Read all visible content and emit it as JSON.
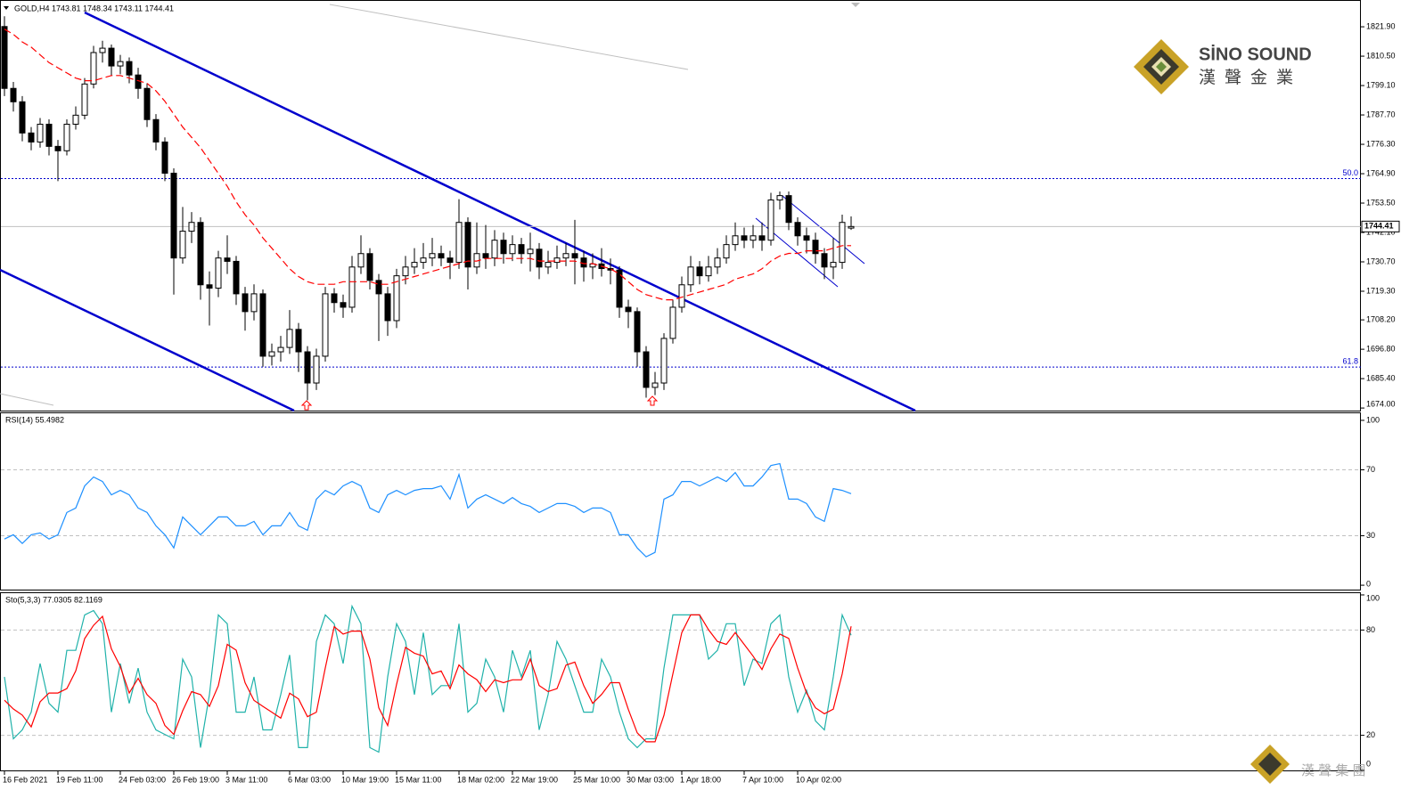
{
  "chart_data": [
    {
      "type": "candlestick",
      "title": "GOLD,H4  1743.81 1748.34 1743.11 1744.41",
      "categories": [
        "16 Feb 2021",
        null,
        null,
        null,
        null,
        null,
        "19 Feb 11:00",
        null,
        null,
        null,
        null,
        null,
        null,
        "24 Feb 03:00",
        null,
        null,
        null,
        null,
        null,
        "26 Feb 19:00",
        null,
        null,
        null,
        null,
        null,
        "3 Mar 11:00",
        null,
        null,
        null,
        null,
        null,
        null,
        "6 Mar 03:00",
        null,
        null,
        null,
        null,
        null,
        "10 Mar 19:00",
        null,
        null,
        null,
        null,
        null,
        "15 Mar 11:00",
        null,
        null,
        null,
        null,
        null,
        null,
        "18 Mar 02:00",
        null,
        null,
        null,
        null,
        null,
        "22 Mar 19:00",
        null,
        null,
        null,
        null,
        null,
        null,
        "25 Mar 10:00",
        null,
        null,
        null,
        null,
        null,
        "30 Mar 03:00",
        null,
        null,
        null,
        null,
        null,
        "1 Apr 18:00",
        null,
        null,
        null,
        null,
        null,
        null,
        "7 Apr 10:00",
        null,
        null,
        null,
        null,
        null,
        "10 Apr 02:00",
        null,
        null,
        null,
        null,
        null,
        null
      ],
      "open": [
        1822.0,
        1798.0,
        1792.8,
        1780.7,
        1777.2,
        1784.1,
        1775.5,
        1773.8,
        1784.1,
        1787.6,
        1799.7,
        1811.9,
        1813.6,
        1806.7,
        1808.4,
        1803.2,
        1798.0,
        1785.9,
        1777.2,
        1765.1,
        1732.2,
        1742.6,
        1746.0,
        1721.8,
        1720.5,
        1732.2,
        1730.9,
        1718.3,
        1711.4,
        1718.3,
        1694.1,
        1695.8,
        1697.5,
        1704.5,
        1695.8,
        1683.7,
        1694.1,
        1718.3,
        1714.9,
        1713.1,
        1728.7,
        1733.9,
        1723.5,
        1718.3,
        1707.9,
        1725.3,
        1728.7,
        1730.5,
        1732.2,
        1733.9,
        1732.2,
        1730.5,
        1746.0,
        1728.7,
        1733.9,
        1732.2,
        1739.1,
        1733.9,
        1737.4,
        1733.9,
        1735.6,
        1728.7,
        1730.5,
        1732.2,
        1733.9,
        1732.2,
        1728.7,
        1729.9,
        1728.1,
        1727.5,
        1713.1,
        1711.4,
        1695.8,
        1682.0,
        1683.7,
        1701.0,
        1713.1,
        1721.8,
        1728.7,
        1725.3,
        1728.7,
        1732.2,
        1737.4,
        1740.8,
        1739.1,
        1740.8,
        1739.1,
        1754.7,
        1756.4,
        1746.0,
        1740.8,
        1739.1,
        1733.9,
        1728.7,
        1730.5,
        1743.81
      ],
      "high": [
        1826.0,
        1800.5,
        1795.0,
        1783.0,
        1786.5,
        1786.0,
        1778.0,
        1786.0,
        1791.0,
        1802.0,
        1814.5,
        1816.5,
        1815.0,
        1811.0,
        1810.0,
        1806.0,
        1800.0,
        1788.0,
        1779.0,
        1767.0,
        1752.0,
        1750.0,
        1748.0,
        1727.0,
        1735.0,
        1741.0,
        1733.0,
        1721.0,
        1722.0,
        1720.0,
        1699.0,
        1702.0,
        1712.0,
        1707.0,
        1698.0,
        1697.0,
        1721.0,
        1720.5,
        1718.0,
        1733.0,
        1741.0,
        1736.0,
        1726.0,
        1721.0,
        1728.0,
        1733.0,
        1736.0,
        1738.0,
        1740.0,
        1737.0,
        1735.0,
        1755.0,
        1748.0,
        1746.0,
        1745.0,
        1743.0,
        1742.0,
        1741.0,
        1740.0,
        1742.0,
        1738.0,
        1735.0,
        1737.0,
        1738.0,
        1747.0,
        1735.0,
        1734.0,
        1736.0,
        1732.0,
        1729.0,
        1716.0,
        1713.0,
        1698.0,
        1688.0,
        1703.0,
        1716.0,
        1725.0,
        1733.0,
        1731.0,
        1733.0,
        1736.0,
        1741.0,
        1746.0,
        1744.0,
        1745.0,
        1746.0,
        1757.5,
        1758.0,
        1758.0,
        1748.0,
        1744.0,
        1742.0,
        1736.0,
        1740.0,
        1749.0,
        1748.34
      ],
      "low": [
        1795.0,
        1789.0,
        1777.5,
        1774.0,
        1775.0,
        1772.0,
        1762.0,
        1772.0,
        1782.0,
        1786.0,
        1798.0,
        1808.0,
        1803.0,
        1803.5,
        1800.0,
        1794.0,
        1783.0,
        1774.0,
        1762.0,
        1718.0,
        1730.0,
        1738.0,
        1716.0,
        1706.0,
        1717.0,
        1726.0,
        1714.0,
        1704.0,
        1708.0,
        1690.0,
        1690.5,
        1692.0,
        1695.0,
        1688.0,
        1677.0,
        1681.0,
        1692.0,
        1711.0,
        1709.0,
        1711.0,
        1726.0,
        1720.0,
        1700.0,
        1702.0,
        1705.0,
        1722.0,
        1726.0,
        1728.0,
        1729.0,
        1729.0,
        1724.0,
        1728.0,
        1720.0,
        1726.0,
        1728.0,
        1729.0,
        1730.0,
        1731.0,
        1730.0,
        1727.0,
        1724.0,
        1726.0,
        1728.0,
        1729.0,
        1722.0,
        1723.0,
        1724.0,
        1725.0,
        1722.0,
        1709.0,
        1705.0,
        1690.0,
        1678.0,
        1679.0,
        1681.0,
        1699.0,
        1711.0,
        1719.0,
        1722.0,
        1723.0,
        1726.0,
        1730.0,
        1735.0,
        1736.0,
        1736.0,
        1735.0,
        1737.0,
        1751.0,
        1743.0,
        1737.0,
        1734.0,
        1730.0,
        1724.0,
        1724.0,
        1728.0,
        1743.11
      ],
      "close": [
        1798.0,
        1792.8,
        1780.7,
        1777.2,
        1784.1,
        1775.5,
        1773.8,
        1784.1,
        1787.6,
        1799.7,
        1811.9,
        1813.6,
        1806.7,
        1808.4,
        1803.2,
        1798.0,
        1785.9,
        1777.2,
        1765.1,
        1732.2,
        1742.6,
        1746.0,
        1721.8,
        1720.5,
        1732.2,
        1730.9,
        1718.3,
        1711.4,
        1718.3,
        1694.1,
        1695.8,
        1697.5,
        1704.5,
        1695.8,
        1683.7,
        1694.1,
        1718.3,
        1714.9,
        1713.1,
        1728.7,
        1733.9,
        1723.5,
        1718.3,
        1707.9,
        1725.3,
        1728.7,
        1730.5,
        1732.2,
        1733.9,
        1732.2,
        1730.5,
        1746.0,
        1728.7,
        1733.9,
        1732.2,
        1739.1,
        1733.9,
        1737.4,
        1733.9,
        1735.6,
        1728.7,
        1730.5,
        1732.2,
        1733.9,
        1732.2,
        1728.7,
        1729.9,
        1728.1,
        1727.5,
        1713.1,
        1711.4,
        1695.8,
        1682.0,
        1683.7,
        1701.0,
        1713.1,
        1721.8,
        1728.7,
        1725.3,
        1728.7,
        1732.2,
        1737.4,
        1740.8,
        1739.1,
        1740.8,
        1739.1,
        1754.7,
        1756.4,
        1746.0,
        1740.8,
        1739.1,
        1733.9,
        1728.7,
        1730.5,
        1746.0,
        1744.41
      ],
      "up_color": "#ffffff",
      "down_color": "#000000",
      "ma": {
        "color": "#ff0000",
        "values": [
          1821,
          1819,
          1816,
          1814,
          1811,
          1808,
          1806,
          1804,
          1802,
          1801,
          1801,
          1802,
          1803,
          1803,
          1802,
          1801,
          1800,
          1797,
          1793,
          1788,
          1783,
          1779,
          1775,
          1770,
          1765,
          1760,
          1754,
          1749,
          1745,
          1740,
          1736,
          1732,
          1728,
          1725,
          1723,
          1722,
          1722,
          1722,
          1723,
          1723,
          1723,
          1723,
          1722,
          1722,
          1723,
          1724,
          1725,
          1726,
          1727,
          1728,
          1729,
          1730,
          1731,
          1731,
          1732,
          1732,
          1732,
          1732,
          1732,
          1732,
          1731,
          1731,
          1731,
          1731,
          1731,
          1730,
          1730,
          1729,
          1728,
          1726,
          1723,
          1720,
          1718,
          1717,
          1716,
          1716,
          1717,
          1718,
          1719,
          1720,
          1721,
          1722,
          1724,
          1725,
          1726,
          1728,
          1731,
          1733,
          1734,
          1734,
          1735,
          1735,
          1735,
          1736,
          1737,
          1737
        ]
      },
      "ylim": [
        1673.0,
        1831.6
      ],
      "yticks": [
        {
          "value": 1821.9,
          "label": "1821.90"
        },
        {
          "value": 1810.5,
          "label": "1810.50"
        },
        {
          "value": 1799.1,
          "label": "1799.10"
        },
        {
          "value": 1787.7,
          "label": "1787.70"
        },
        {
          "value": 1776.3,
          "label": "1776.30"
        },
        {
          "value": 1764.9,
          "label": "1764.90"
        },
        {
          "value": 1753.5,
          "label": "1753.50"
        },
        {
          "value": 1742.1,
          "label": "1742.10"
        },
        {
          "value": 1730.7,
          "label": "1730.70"
        },
        {
          "value": 1719.3,
          "label": "1719.30"
        },
        {
          "value": 1708.2,
          "label": "1708.20"
        },
        {
          "value": 1696.8,
          "label": "1696.80"
        },
        {
          "value": 1685.4,
          "label": "1685.40"
        },
        {
          "value": 1674.0,
          "label": "1674.00"
        }
      ],
      "levels": [
        {
          "label": "50.0",
          "price": 1763.0
        },
        {
          "label": "61.8",
          "price": 1689.9
        }
      ],
      "level_color": "#0000cd",
      "last_price": 1744.41
    },
    {
      "type": "line",
      "title": "RSI(14) 55.4982",
      "series": [
        {
          "color": "#1e90ff",
          "values": [
            28.0,
            30.6,
            25.3,
            30.6,
            31.7,
            28.0,
            30.6,
            44.1,
            46.8,
            60.2,
            65.6,
            62.9,
            54.8,
            57.5,
            54.8,
            46.8,
            44.1,
            36.0,
            30.6,
            22.6,
            41.4,
            36.0,
            30.6,
            36.0,
            41.4,
            41.4,
            36.0,
            36.0,
            38.7,
            30.6,
            36.0,
            36.0,
            44.1,
            36.0,
            33.3,
            52.2,
            57.5,
            54.8,
            60.2,
            62.9,
            60.2,
            46.8,
            44.1,
            54.8,
            57.5,
            54.8,
            57.5,
            58.6,
            58.6,
            60.2,
            52.2,
            67.2,
            46.8,
            52.2,
            54.8,
            52.2,
            49.5,
            53.2,
            49.5,
            47.8,
            44.1,
            46.8,
            49.5,
            49.5,
            47.8,
            44.1,
            46.8,
            46.8,
            44.1,
            30.6,
            30.6,
            22.6,
            17.2,
            19.9,
            52.2,
            54.8,
            62.9,
            62.9,
            60.2,
            62.9,
            65.6,
            62.9,
            68.3,
            60.2,
            60.2,
            65.6,
            72.6,
            73.7,
            52.2,
            52.2,
            49.5,
            41.4,
            38.7,
            58.6,
            57.5,
            55.4982
          ]
        }
      ],
      "ylim": [
        -3.2,
        104.3
      ],
      "yticks": [
        0,
        30,
        70,
        100
      ],
      "levels": [
        30,
        70
      ]
    },
    {
      "type": "line",
      "title": "Sto(5,3,3) 77.0305 82.1169",
      "series": [
        {
          "color": "#20b2aa",
          "values": [
            53.3,
            18.0,
            23.1,
            33.2,
            60.9,
            38.2,
            33.2,
            68.4,
            68.4,
            88.6,
            91.1,
            83.6,
            33.2,
            60.9,
            38.2,
            58.3,
            33.2,
            23.1,
            20.5,
            18.0,
            63.4,
            53.3,
            13.0,
            43.2,
            88.6,
            83.6,
            33.2,
            33.2,
            53.3,
            23.1,
            23.1,
            43.2,
            65.8,
            13.0,
            13.0,
            73.5,
            88.6,
            83.6,
            60.9,
            93.6,
            83.6,
            13.0,
            10.4,
            53.3,
            83.6,
            73.5,
            43.2,
            78.5,
            43.2,
            48.3,
            48.3,
            83.6,
            33.2,
            38.2,
            63.4,
            53.3,
            33.2,
            68.4,
            53.3,
            68.4,
            23.1,
            43.2,
            73.5,
            63.4,
            48.3,
            33.2,
            33.2,
            63.4,
            53.3,
            33.2,
            18.0,
            13.0,
            18.0,
            18.0,
            58.3,
            88.6,
            88.6,
            88.6,
            88.6,
            63.4,
            68.4,
            83.6,
            83.6,
            48.3,
            63.4,
            60.9,
            83.6,
            88.6,
            53.3,
            33.2,
            45.7,
            28.2,
            23.1,
            53.3,
            88.6,
            77.0305
          ]
        },
        {
          "color": "#ff0000",
          "values": [
            40.0,
            35.0,
            31.5,
            24.8,
            39.1,
            44.1,
            44.1,
            46.6,
            56.7,
            75.1,
            82.7,
            87.8,
            69.3,
            59.2,
            44.1,
            52.5,
            43.2,
            38.2,
            25.6,
            20.5,
            34.0,
            44.9,
            43.2,
            36.5,
            48.3,
            71.8,
            68.5,
            50.0,
            39.9,
            36.5,
            33.2,
            29.8,
            44.0,
            40.7,
            30.6,
            33.2,
            58.4,
            81.9,
            77.7,
            79.4,
            79.4,
            63.5,
            35.7,
            25.6,
            49.1,
            70.1,
            66.8,
            65.1,
            55.0,
            56.7,
            46.6,
            60.1,
            55.0,
            51.7,
            44.9,
            51.6,
            50.0,
            51.6,
            51.6,
            63.4,
            48.3,
            44.9,
            46.6,
            60.0,
            61.7,
            48.3,
            38.2,
            43.3,
            50.0,
            50.0,
            34.8,
            21.4,
            16.3,
            16.3,
            31.4,
            55.0,
            78.5,
            88.6,
            88.6,
            80.2,
            73.5,
            71.8,
            78.5,
            71.8,
            65.1,
            57.5,
            69.3,
            77.7,
            75.2,
            58.4,
            44.1,
            35.7,
            32.3,
            34.9,
            55.0,
            82.1169
          ]
        }
      ],
      "ylim": [
        0,
        101
      ],
      "yticks": [
        0,
        20,
        80,
        100
      ],
      "levels": [
        20,
        80
      ]
    }
  ],
  "logo": {
    "name": "SİNO SOUND",
    "tagline": "漢聲金業"
  },
  "footer_logo": "漢 聲 集 團"
}
